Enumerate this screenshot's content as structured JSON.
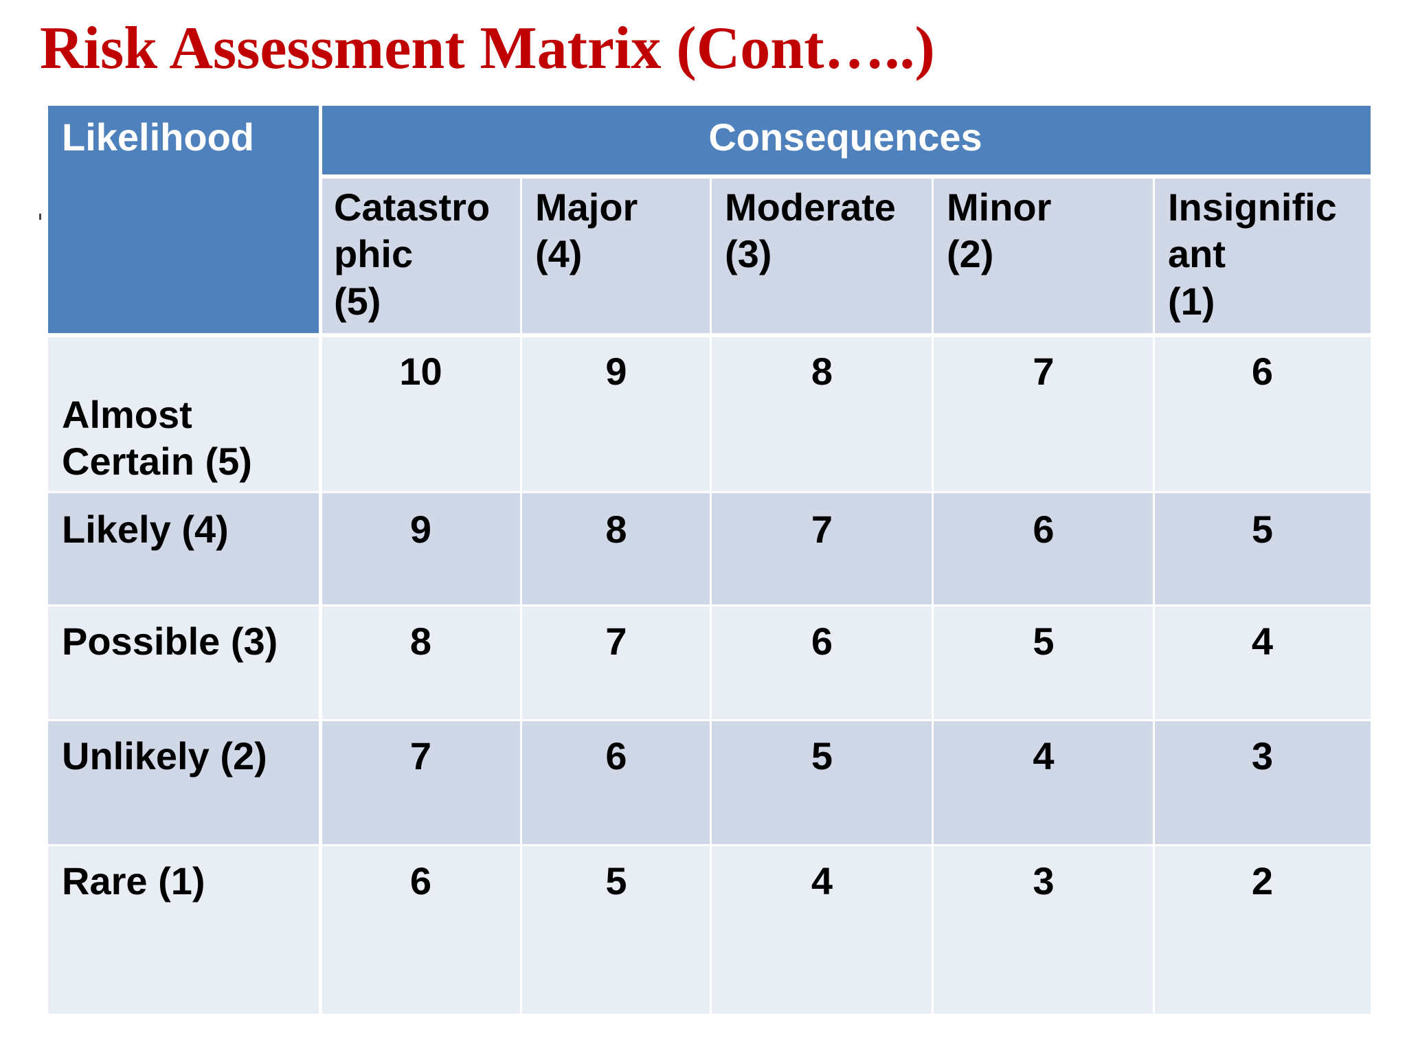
{
  "title": "Risk Assessment Matrix (Cont…..)",
  "table": {
    "likelihood_header": "Likelihood",
    "consequences_header": "Consequences",
    "consequence_columns": [
      "Catastro phic (5)",
      "Major (4)",
      "Moderate (3)",
      "Minor (2)",
      "Insignific ant (1)"
    ],
    "consequence_lines": [
      [
        "Catastro",
        "phic",
        "(5)"
      ],
      [
        "Major",
        "(4)"
      ],
      [
        "Moderate",
        "(3)"
      ],
      [
        "Minor",
        "(2)"
      ],
      [
        "Insignific",
        "ant",
        "(1)"
      ]
    ],
    "rows": [
      {
        "label_lines": [
          "Almost",
          "Certain (5)"
        ],
        "values": [
          "10",
          "9",
          "8",
          "7",
          "6"
        ]
      },
      {
        "label_lines": [
          "Likely (4)"
        ],
        "values": [
          "9",
          "8",
          "7",
          "6",
          "5"
        ]
      },
      {
        "label_lines": [
          "Possible (3)"
        ],
        "values": [
          "8",
          "7",
          "6",
          "5",
          "4"
        ]
      },
      {
        "label_lines": [
          "Unlikely (2)"
        ],
        "values": [
          "7",
          "6",
          "5",
          "4",
          "3"
        ]
      },
      {
        "label_lines": [
          "Rare (1)"
        ],
        "values": [
          "6",
          "5",
          "4",
          "3",
          "2"
        ]
      }
    ]
  },
  "colors": {
    "title": "#c00000",
    "header": "#4f81bd",
    "band_dark": "#d0d8e8",
    "band_light": "#e9edf4"
  }
}
